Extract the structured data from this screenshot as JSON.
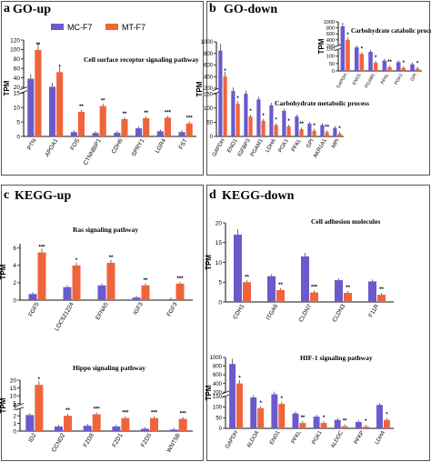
{
  "figure": {
    "colors": {
      "mc": "#6a5acd",
      "mt": "#f0643c",
      "axis": "#111111",
      "frame": "#555555"
    },
    "legend": {
      "mc": "MC-F7",
      "mt": "MT-F7"
    },
    "panels": [
      {
        "letter": "a",
        "title": "GO-up"
      },
      {
        "letter": "b",
        "title": "GO-down"
      },
      {
        "letter": "c",
        "title": "KEGG-up"
      },
      {
        "letter": "d",
        "title": "KEGG-down"
      }
    ]
  },
  "chart_data": [
    {
      "type": "bar",
      "title": "Cell surface receptor signaling pathway",
      "ylabel": "TPM",
      "categories": [
        "PTN",
        "APOA1",
        "FOS",
        "CTNNBIP1",
        "CDH6",
        "SPRY1",
        "LGR4",
        "FST"
      ],
      "series": [
        {
          "name": "MC-F7",
          "values": [
            38,
            21,
            1.5,
            1.2,
            1.3,
            2.8,
            1.8,
            1.5
          ]
        },
        {
          "name": "MT-F7",
          "values": [
            99,
            52,
            8.5,
            10.5,
            6.0,
            6.3,
            6.5,
            4.5
          ]
        }
      ],
      "significance": [
        "**",
        "*",
        "**",
        "**",
        "**",
        "**",
        "***",
        "***"
      ],
      "yticks": [
        0,
        5,
        10,
        15,
        20,
        40,
        60,
        80,
        100,
        120
      ],
      "ybreak": [
        15,
        20
      ],
      "ylim": [
        0,
        120
      ]
    },
    {
      "type": "bar",
      "title": "Carbohydrate metabolic process",
      "ylabel": "TPM",
      "categories": [
        "GAPDH",
        "ENO1",
        "IGFBP3",
        "PGAM1",
        "LDHA",
        "PGK1",
        "PFKL",
        "GPI",
        "AKR1A1",
        "MPI"
      ],
      "series": [
        {
          "name": "MC-F7",
          "values": [
            850,
            175,
            150,
            130,
            110,
            90,
            70,
            45,
            40,
            30
          ]
        },
        {
          "name": "MT-F7",
          "values": [
            400,
            115,
            70,
            55,
            40,
            35,
            25,
            20,
            15,
            10
          ]
        }
      ],
      "significance": [
        "*",
        "*",
        "*",
        "*",
        "*",
        "*",
        "**",
        "*",
        "**",
        "*"
      ],
      "yticks": [
        0,
        50,
        100,
        150,
        200,
        400,
        600,
        800,
        1000
      ],
      "ybreak": [
        150,
        200
      ],
      "ylim": [
        0,
        1000
      ]
    },
    {
      "type": "bar",
      "title": "Carbohydrate catabolic process",
      "ylabel": "TPM",
      "categories": [
        "GAPDH",
        "ENO1",
        "PGAM1",
        "PFKL",
        "PGK1",
        "GPI"
      ],
      "series": [
        {
          "name": "MC-F7",
          "values": [
            850,
            175,
            130,
            70,
            60,
            45
          ]
        },
        {
          "name": "MT-F7",
          "values": [
            400,
            115,
            55,
            25,
            20,
            15
          ]
        }
      ],
      "significance": [
        "*",
        "*",
        "*",
        "**",
        "*",
        "*"
      ],
      "yticks": [
        0,
        50,
        100,
        150,
        200,
        400,
        600,
        800,
        1000
      ],
      "ybreak": [
        150,
        200
      ],
      "ylim": [
        0,
        1000
      ]
    },
    {
      "type": "bar",
      "title": "Ras signaling pathway",
      "ylabel": "TPM",
      "categories": [
        "FGF5",
        "LOC521224",
        "EFNA5",
        "IGF3",
        "FGF3"
      ],
      "series": [
        {
          "name": "MC-F7",
          "values": [
            0.7,
            1.5,
            1.7,
            0.3,
            0.1
          ]
        },
        {
          "name": "MT-F7",
          "values": [
            5.5,
            4.0,
            4.3,
            1.7,
            1.9
          ]
        }
      ],
      "significance": [
        "***",
        "*",
        "**",
        "**",
        "***"
      ],
      "yticks": [
        0,
        2,
        4,
        6
      ],
      "ylim": [
        0,
        6.5
      ]
    },
    {
      "type": "bar",
      "title": "Hippo signaling pathway",
      "ylabel": "TPM",
      "categories": [
        "ID2",
        "CCND2",
        "FZD8",
        "FZD1",
        "FZD5",
        "WNT5B"
      ],
      "series": [
        {
          "name": "MC-F7",
          "values": [
            2.1,
            0.6,
            0.7,
            0.6,
            0.3,
            0.2
          ]
        },
        {
          "name": "MT-F7",
          "values": [
            17,
            2.0,
            2.2,
            1.7,
            1.7,
            1.6
          ]
        }
      ],
      "significance": [
        "*",
        "**",
        "***",
        "***",
        "***",
        "***"
      ],
      "yticks": [
        0,
        1,
        2,
        3,
        4,
        5,
        10,
        15,
        20
      ],
      "ybreak": [
        3,
        4
      ],
      "ylim": [
        0,
        20
      ]
    },
    {
      "type": "bar",
      "title": "Cell adhesion molecules",
      "ylabel": "TPM",
      "categories": [
        "CDH1",
        "ITGA6",
        "CLDN7",
        "CLDN3",
        "F11R"
      ],
      "series": [
        {
          "name": "MC-F7",
          "values": [
            17,
            6.5,
            11.5,
            5.5,
            5.2
          ]
        },
        {
          "name": "MT-F7",
          "values": [
            5,
            3.0,
            2.4,
            2.3,
            1.8
          ]
        }
      ],
      "significance": [
        "**",
        "**",
        "***",
        "**",
        "**"
      ],
      "yticks": [
        0,
        5,
        10,
        15,
        20
      ],
      "ylim": [
        0,
        20
      ]
    },
    {
      "type": "bar",
      "title": "HIF-1 signaling pathway",
      "ylabel": "TPM",
      "categories": [
        "GAPDH",
        "ALDOA",
        "ENO1",
        "PFKL",
        "PGK1",
        "ALDOC",
        "PFKP",
        "LDHA"
      ],
      "series": [
        {
          "name": "MC-F7",
          "values": [
            850,
            145,
            175,
            70,
            55,
            40,
            30,
            110
          ]
        },
        {
          "name": "MT-F7",
          "values": [
            400,
            95,
            115,
            25,
            25,
            10,
            8,
            40
          ]
        }
      ],
      "significance": [
        "*",
        "*",
        "*",
        "**",
        "*",
        "**",
        "*",
        "*"
      ],
      "yticks": [
        0,
        50,
        100,
        150,
        200,
        400,
        600,
        800,
        1000
      ],
      "ybreak": [
        150,
        200
      ],
      "ylim": [
        0,
        1000
      ]
    }
  ]
}
